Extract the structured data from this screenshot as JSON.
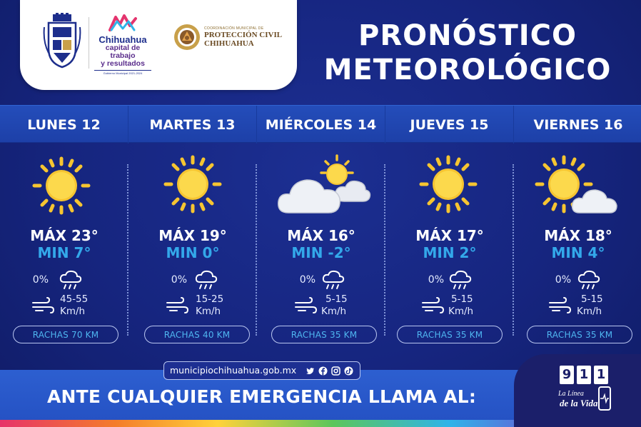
{
  "header": {
    "chihuahua_logo": {
      "name": "Chihuahua",
      "tagline_line1": "capital de trabajo",
      "tagline_line2": "y resultados",
      "small_print": "Gobierno Municipal 2021-2024"
    },
    "proteccion_civil": {
      "small_print": "COORDINACIÓN MUNICIPAL DE",
      "line1": "PROTECCIÓN CIVIL",
      "line2": "CHIHUAHUA"
    },
    "title_line1": "PRONÓSTICO",
    "title_line2": "METEOROLÓGICO"
  },
  "days": [
    {
      "label": "LUNES 12",
      "condition": "sunny",
      "max": "MÁX 23°",
      "min": "MIN 7°",
      "rain": "0%",
      "wind_range": "45-55",
      "wind_unit": "Km/h",
      "gusts": "RACHAS 70 KM"
    },
    {
      "label": "MARTES 13",
      "condition": "sunny",
      "max": "MÁX 19°",
      "min": "MIN 0°",
      "rain": "0%",
      "wind_range": "15-25",
      "wind_unit": "Km/h",
      "gusts": "RACHAS 40 KM"
    },
    {
      "label": "MIÉRCOLES 14",
      "condition": "cloudy-sun",
      "max": "MÁX 16°",
      "min": "MIN -2°",
      "rain": "0%",
      "wind_range": "5-15",
      "wind_unit": "Km/h",
      "gusts": "RACHAS 35 KM"
    },
    {
      "label": "JUEVES 15",
      "condition": "sunny",
      "max": "MÁX 17°",
      "min": "MIN 2°",
      "rain": "0%",
      "wind_range": "5-15",
      "wind_unit": "Km/h",
      "gusts": "RACHAS 35 KM"
    },
    {
      "label": "VIERNES 16",
      "condition": "sun-cloud",
      "max": "MÁX 18°",
      "min": "MIN 4°",
      "rain": "0%",
      "wind_range": "5-15",
      "wind_unit": "Km/h",
      "gusts": "RACHAS 35 KM"
    }
  ],
  "footer": {
    "website": "municipiochihuahua.gob.mx",
    "social_icons": [
      "twitter-icon",
      "facebook-icon",
      "instagram-icon",
      "tiktok-icon"
    ],
    "emergency_text": "ANTE CUALQUIER EMERGENCIA LLAMA AL:",
    "emergency_digits": [
      "9",
      "1",
      "1"
    ],
    "line_la_linea": "La Línea",
    "line_de_la_vida": "de la Vida"
  },
  "colors": {
    "background": "#14237a",
    "day_band": "#244dba",
    "min_temp": "#33a8ea",
    "gust_text": "#4fb6f0",
    "footer_band": "#2d5fd0"
  }
}
